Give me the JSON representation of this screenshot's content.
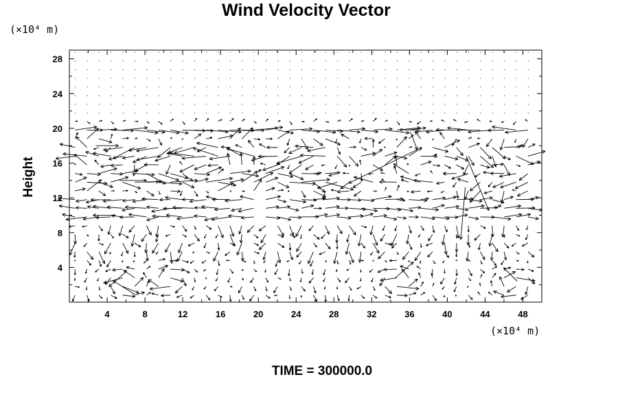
{
  "chart_data": {
    "type": "vector-field",
    "title": "Wind Velocity Vector",
    "ylabel": "Height",
    "y_unit": "(×10⁴ m)",
    "x_unit": "(×10⁴ m)",
    "xlim": [
      0,
      50
    ],
    "ylim": [
      0,
      29
    ],
    "x_ticks": [
      4,
      8,
      12,
      16,
      20,
      24,
      28,
      32,
      36,
      40,
      44,
      48
    ],
    "y_ticks": [
      4,
      8,
      12,
      16,
      20,
      24,
      28
    ],
    "grid": false,
    "grid_x": [
      0,
      49.2,
      40
    ],
    "grid_y": [
      0.8,
      28.8,
      29
    ],
    "vector_scale_1e4m": 0.12,
    "footer": "TIME = 300000.0",
    "sample_vectors": [
      {
        "x": 36.9,
        "y": 17.6,
        "u": -61,
        "v": -30
      },
      {
        "x": 42.0,
        "y": 16.8,
        "u": 20,
        "v": -48
      },
      {
        "x": 41.9,
        "y": 13.2,
        "u": -4,
        "v": -46
      },
      {
        "x": 36.1,
        "y": 19.6,
        "u": 6,
        "v": -16
      },
      {
        "x": 2.8,
        "y": 18.0,
        "u": 20,
        "v": 0
      },
      {
        "x": 5.3,
        "y": 14.0,
        "u": 24,
        "v": 0
      },
      {
        "x": 4.9,
        "y": 10.0,
        "u": -20,
        "v": 0
      },
      {
        "x": 6.1,
        "y": 3.6,
        "u": -16,
        "v": -14
      },
      {
        "x": 6.9,
        "y": 0.9,
        "u": -19,
        "v": 12
      },
      {
        "x": 34.5,
        "y": 2.8,
        "u": 16,
        "v": 14
      },
      {
        "x": 47.4,
        "y": 2.4,
        "u": -12,
        "v": 12
      }
    ]
  }
}
